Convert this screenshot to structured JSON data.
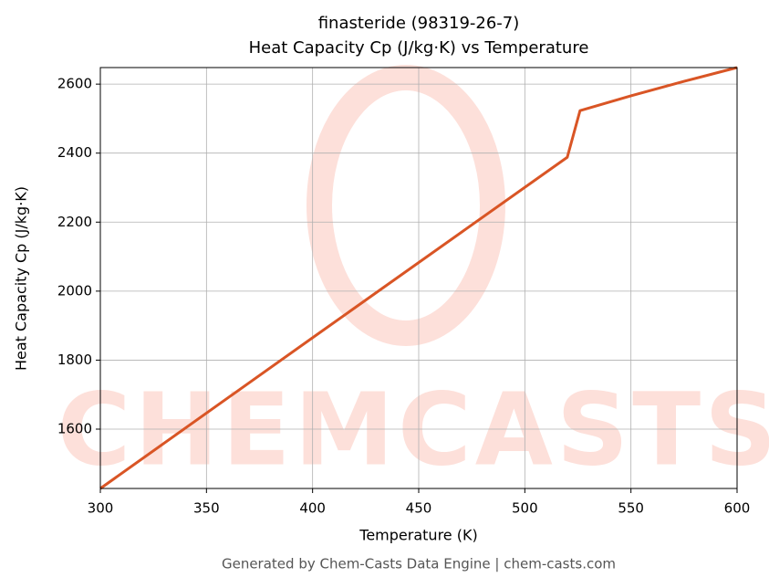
{
  "chart_data": {
    "type": "line",
    "title": "finasteride (98319-26-7)",
    "subtitle": "Heat Capacity Cp (J/kg·K) vs Temperature",
    "x_label": "Temperature (K)",
    "y_label": "Heat Capacity Cp (J/kg·K)",
    "watermark": "CHEMCASTS",
    "footer": "Generated by Chem-Casts Data Engine | chem-casts.com",
    "x": [
      300,
      400,
      520,
      526,
      550,
      575,
      600
    ],
    "series": [
      {
        "name": "Heat Capacity Cp",
        "color": "#d95525",
        "values": [
          1428,
          1865,
          2388,
          2523,
          2566,
          2608,
          2648
        ]
      }
    ],
    "xlim": [
      300,
      600
    ],
    "xticks": [
      300,
      350,
      400,
      450,
      500,
      550,
      600
    ],
    "ylim": [
      1428,
      2648
    ],
    "yticks": [
      1600,
      1800,
      2000,
      2200,
      2400,
      2600
    ],
    "grid": true
  }
}
